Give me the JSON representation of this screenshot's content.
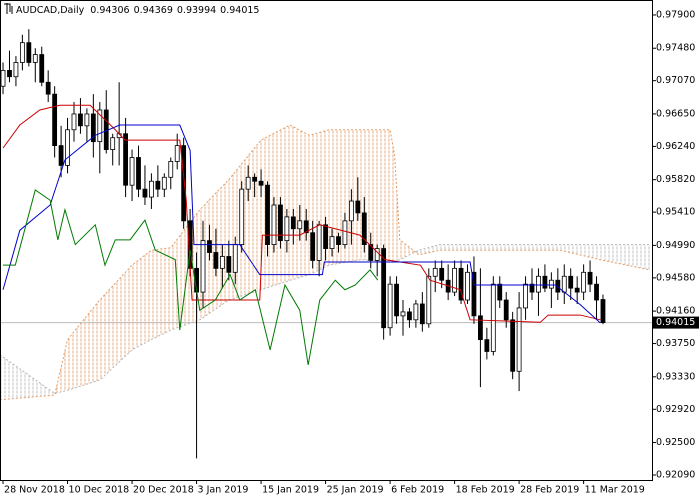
{
  "chart_data": {
    "type": "candlestick",
    "title": "AUDCAD,Daily",
    "xlim": [
      -0.47,
      100.6
    ],
    "ylim": [
      0.92027,
      0.98089
    ],
    "xticks": [
      {
        "value": 0,
        "label": "28 Nov 2018"
      },
      {
        "value": 10,
        "label": "10 Dec 2018"
      },
      {
        "value": 20,
        "label": "20 Dec 2018"
      },
      {
        "value": 30,
        "label": "3 Jan 2019"
      },
      {
        "value": 40,
        "label": "15 Jan 2019"
      },
      {
        "value": 50,
        "label": "25 Jan 2019"
      },
      {
        "value": 60,
        "label": "6 Feb 2019"
      },
      {
        "value": 70,
        "label": "18 Feb 2019"
      },
      {
        "value": 80,
        "label": "28 Feb 2019"
      },
      {
        "value": 90,
        "label": "11 Mar 2019"
      }
    ],
    "yticks": [
      {
        "value": 0.979,
        "label": "0.97900"
      },
      {
        "value": 0.9748,
        "label": "0.97480"
      },
      {
        "value": 0.9707,
        "label": "0.97070"
      },
      {
        "value": 0.9665,
        "label": "0.96650"
      },
      {
        "value": 0.9624,
        "label": "0.96240"
      },
      {
        "value": 0.9582,
        "label": "0.95820"
      },
      {
        "value": 0.9541,
        "label": "0.95410"
      },
      {
        "value": 0.9499,
        "label": "0.94990"
      },
      {
        "value": 0.9458,
        "label": "0.94580"
      },
      {
        "value": 0.9416,
        "label": "0.94160"
      },
      {
        "value": 0.9375,
        "label": "0.93750"
      },
      {
        "value": 0.9333,
        "label": "0.93330"
      },
      {
        "value": 0.9292,
        "label": "0.92920"
      },
      {
        "value": 0.925,
        "label": "0.92500"
      },
      {
        "value": 0.9209,
        "label": "0.92090"
      }
    ],
    "current_price": 0.94015,
    "bull_color": "#ffffff",
    "bear_color": "#000000",
    "open": [
      0.97,
      0.972,
      0.9712,
      0.973,
      0.9755,
      0.973,
      0.974,
      0.9705,
      0.969,
      0.9625,
      0.96,
      0.9645,
      0.9665,
      0.965,
      0.9665,
      0.963,
      0.967,
      0.962,
      0.9635,
      0.964,
      0.9575,
      0.961,
      0.957,
      0.956,
      0.958,
      0.957,
      0.9585,
      0.9605,
      0.9625,
      0.953,
      0.947,
      0.944,
      0.9505,
      0.949,
      0.947,
      0.9485,
      0.9465,
      0.95,
      0.957,
      0.9585,
      0.958,
      0.9575,
      0.95,
      0.955,
      0.9505,
      0.9535,
      0.952,
      0.953,
      0.9515,
      0.948,
      0.9525,
      0.9495,
      0.951,
      0.95,
      0.953,
      0.9555,
      0.954,
      0.95,
      0.948,
      0.9495,
      0.9395,
      0.945,
      0.941,
      0.9415,
      0.9405,
      0.9425,
      0.94,
      0.946,
      0.947,
      0.9455,
      0.944,
      0.947,
      0.943,
      0.9465,
      0.941,
      0.938,
      0.9365,
      0.945,
      0.943,
      0.9405,
      0.934,
      0.942,
      0.945,
      0.944,
      0.946,
      0.9445,
      0.9455,
      0.944,
      0.946,
      0.9445,
      0.944,
      0.9465,
      0.945,
      0.94306
    ],
    "high": [
      0.973,
      0.9745,
      0.9738,
      0.9765,
      0.9772,
      0.9748,
      0.975,
      0.972,
      0.97,
      0.965,
      0.966,
      0.968,
      0.9685,
      0.9672,
      0.969,
      0.968,
      0.9695,
      0.964,
      0.9705,
      0.966,
      0.962,
      0.9625,
      0.96,
      0.959,
      0.96,
      0.959,
      0.961,
      0.964,
      0.9635,
      0.9545,
      0.949,
      0.953,
      0.9525,
      0.952,
      0.95,
      0.9505,
      0.951,
      0.958,
      0.96,
      0.959,
      0.9595,
      0.958,
      0.956,
      0.956,
      0.9545,
      0.9545,
      0.955,
      0.9545,
      0.953,
      0.953,
      0.9535,
      0.952,
      0.9515,
      0.954,
      0.957,
      0.9585,
      0.956,
      0.9515,
      0.95,
      0.95,
      0.946,
      0.946,
      0.943,
      0.942,
      0.943,
      0.944,
      0.947,
      0.948,
      0.948,
      0.9475,
      0.948,
      0.948,
      0.9475,
      0.9485,
      0.947,
      0.9395,
      0.946,
      0.946,
      0.944,
      0.9415,
      0.944,
      0.946,
      0.947,
      0.947,
      0.9475,
      0.9465,
      0.947,
      0.9475,
      0.947,
      0.946,
      0.9475,
      0.948,
      0.946,
      0.94369
    ],
    "low": [
      0.969,
      0.9705,
      0.97,
      0.972,
      0.9725,
      0.9705,
      0.97,
      0.968,
      0.961,
      0.9585,
      0.959,
      0.963,
      0.964,
      0.963,
      0.961,
      0.959,
      0.9615,
      0.96,
      0.96,
      0.956,
      0.9555,
      0.956,
      0.955,
      0.9545,
      0.956,
      0.956,
      0.957,
      0.9595,
      0.952,
      0.946,
      0.923,
      0.942,
      0.948,
      0.946,
      0.9445,
      0.9455,
      0.945,
      0.949,
      0.9555,
      0.956,
      0.956,
      0.9485,
      0.949,
      0.9495,
      0.949,
      0.95,
      0.9505,
      0.9505,
      0.947,
      0.946,
      0.948,
      0.9485,
      0.949,
      0.9495,
      0.95,
      0.953,
      0.949,
      0.947,
      0.946,
      0.938,
      0.9385,
      0.94,
      0.9385,
      0.9395,
      0.9395,
      0.939,
      0.9395,
      0.944,
      0.9445,
      0.943,
      0.9435,
      0.9425,
      0.9425,
      0.94,
      0.932,
      0.9355,
      0.936,
      0.942,
      0.9395,
      0.933,
      0.9315,
      0.9405,
      0.943,
      0.941,
      0.944,
      0.942,
      0.943,
      0.9425,
      0.943,
      0.9425,
      0.943,
      0.944,
      0.9405,
      0.93994
    ],
    "close": [
      0.972,
      0.9712,
      0.973,
      0.9755,
      0.973,
      0.974,
      0.9705,
      0.969,
      0.9625,
      0.96,
      0.9645,
      0.9665,
      0.965,
      0.9665,
      0.963,
      0.967,
      0.962,
      0.9635,
      0.964,
      0.9575,
      0.961,
      0.957,
      0.956,
      0.958,
      0.957,
      0.9585,
      0.9605,
      0.9625,
      0.953,
      0.947,
      0.944,
      0.9505,
      0.949,
      0.947,
      0.9485,
      0.9465,
      0.95,
      0.957,
      0.9585,
      0.958,
      0.9575,
      0.95,
      0.955,
      0.9505,
      0.9535,
      0.952,
      0.953,
      0.9515,
      0.948,
      0.9525,
      0.9495,
      0.951,
      0.95,
      0.953,
      0.9555,
      0.954,
      0.95,
      0.948,
      0.9495,
      0.9395,
      0.945,
      0.941,
      0.9415,
      0.9405,
      0.9425,
      0.94,
      0.946,
      0.947,
      0.9455,
      0.944,
      0.947,
      0.943,
      0.9465,
      0.941,
      0.938,
      0.9365,
      0.945,
      0.943,
      0.9405,
      0.934,
      0.942,
      0.945,
      0.944,
      0.946,
      0.9445,
      0.9455,
      0.944,
      0.946,
      0.9445,
      0.944,
      0.9465,
      0.945,
      0.943,
      0.94015
    ],
    "cloud": {
      "up_color": "#e39a62",
      "down_color": "#b4b4b4",
      "x": [
        -0.5,
        8,
        10,
        15,
        20,
        23,
        26,
        30.5,
        35,
        40,
        44.5,
        47.5,
        50.5,
        55.5,
        60,
        60.7,
        61.5,
        64.5,
        67.7,
        77,
        86.4,
        92.5,
        100.3
      ],
      "span_a": [
        0.9304,
        0.931,
        0.938,
        0.943,
        0.9474,
        0.9493,
        0.9496,
        0.9544,
        0.9582,
        0.9632,
        0.9651,
        0.9638,
        0.9645,
        0.9645,
        0.9645,
        0.9613,
        0.9506,
        0.9487,
        0.9493,
        0.9493,
        0.9493,
        0.9481,
        0.9468
      ],
      "span_b": [
        0.9361,
        0.9312,
        0.9316,
        0.9329,
        0.9367,
        0.938,
        0.9392,
        0.9405,
        0.943,
        0.9443,
        0.9455,
        0.9462,
        0.9474,
        0.9481,
        0.9478,
        0.9478,
        0.9481,
        0.9493,
        0.95,
        0.95,
        0.95,
        0.95,
        0.95
      ]
    },
    "lines": [
      {
        "color": "#cc0000",
        "x": [
          0,
          2.6,
          5.7,
          8.8,
          13.5,
          17.4,
          18.9,
          27.4,
          28.4,
          29.3,
          39.8,
          40.2,
          46,
          49.1,
          55.3,
          57.7,
          59.2,
          64.7,
          66.2,
          70.9,
          72.4,
          83.3,
          84.5,
          89.5,
          92.6
        ],
        "values": [
          0.9622,
          0.9651,
          0.967,
          0.9676,
          0.9676,
          0.9645,
          0.9632,
          0.9632,
          0.9556,
          0.943,
          0.943,
          0.9512,
          0.9512,
          0.9525,
          0.9512,
          0.9493,
          0.9481,
          0.9474,
          0.9455,
          0.9443,
          0.9405,
          0.9402,
          0.9411,
          0.9411,
          0.9405
        ]
      },
      {
        "color": "#0000cc",
        "x": [
          0,
          2.6,
          7.3,
          9.6,
          14.3,
          18.1,
          27.4,
          29,
          29.6,
          36.7,
          39.8,
          49.5,
          49.8,
          72.4,
          73,
          85.6,
          89.5,
          92.6
        ],
        "values": [
          0.9443,
          0.9518,
          0.955,
          0.9607,
          0.9638,
          0.9651,
          0.9651,
          0.9619,
          0.95,
          0.95,
          0.9462,
          0.9462,
          0.9478,
          0.9478,
          0.9449,
          0.9449,
          0.9424,
          0.9401
        ]
      },
      {
        "color": "#007a00",
        "x": [
          0,
          1.9,
          5,
          7.3,
          8.5,
          9.6,
          11.2,
          14.3,
          15.8,
          17.4,
          19.7,
          22,
          23.6,
          26.7,
          27.4,
          29,
          30.5,
          32.9,
          35.2,
          36.7,
          39.1,
          41.4,
          43.7,
          46,
          47.3,
          49.1,
          51.5,
          53,
          54.6,
          56.9,
          58.1
        ],
        "values": [
          0.9474,
          0.9474,
          0.9569,
          0.9556,
          0.9506,
          0.9544,
          0.95,
          0.9525,
          0.9474,
          0.9506,
          0.9506,
          0.9531,
          0.9493,
          0.9481,
          0.9392,
          0.9493,
          0.9417,
          0.943,
          0.9462,
          0.943,
          0.9443,
          0.9367,
          0.9449,
          0.9417,
          0.9348,
          0.943,
          0.9455,
          0.9443,
          0.9449,
          0.9468,
          0.9455
        ]
      }
    ]
  }
}
